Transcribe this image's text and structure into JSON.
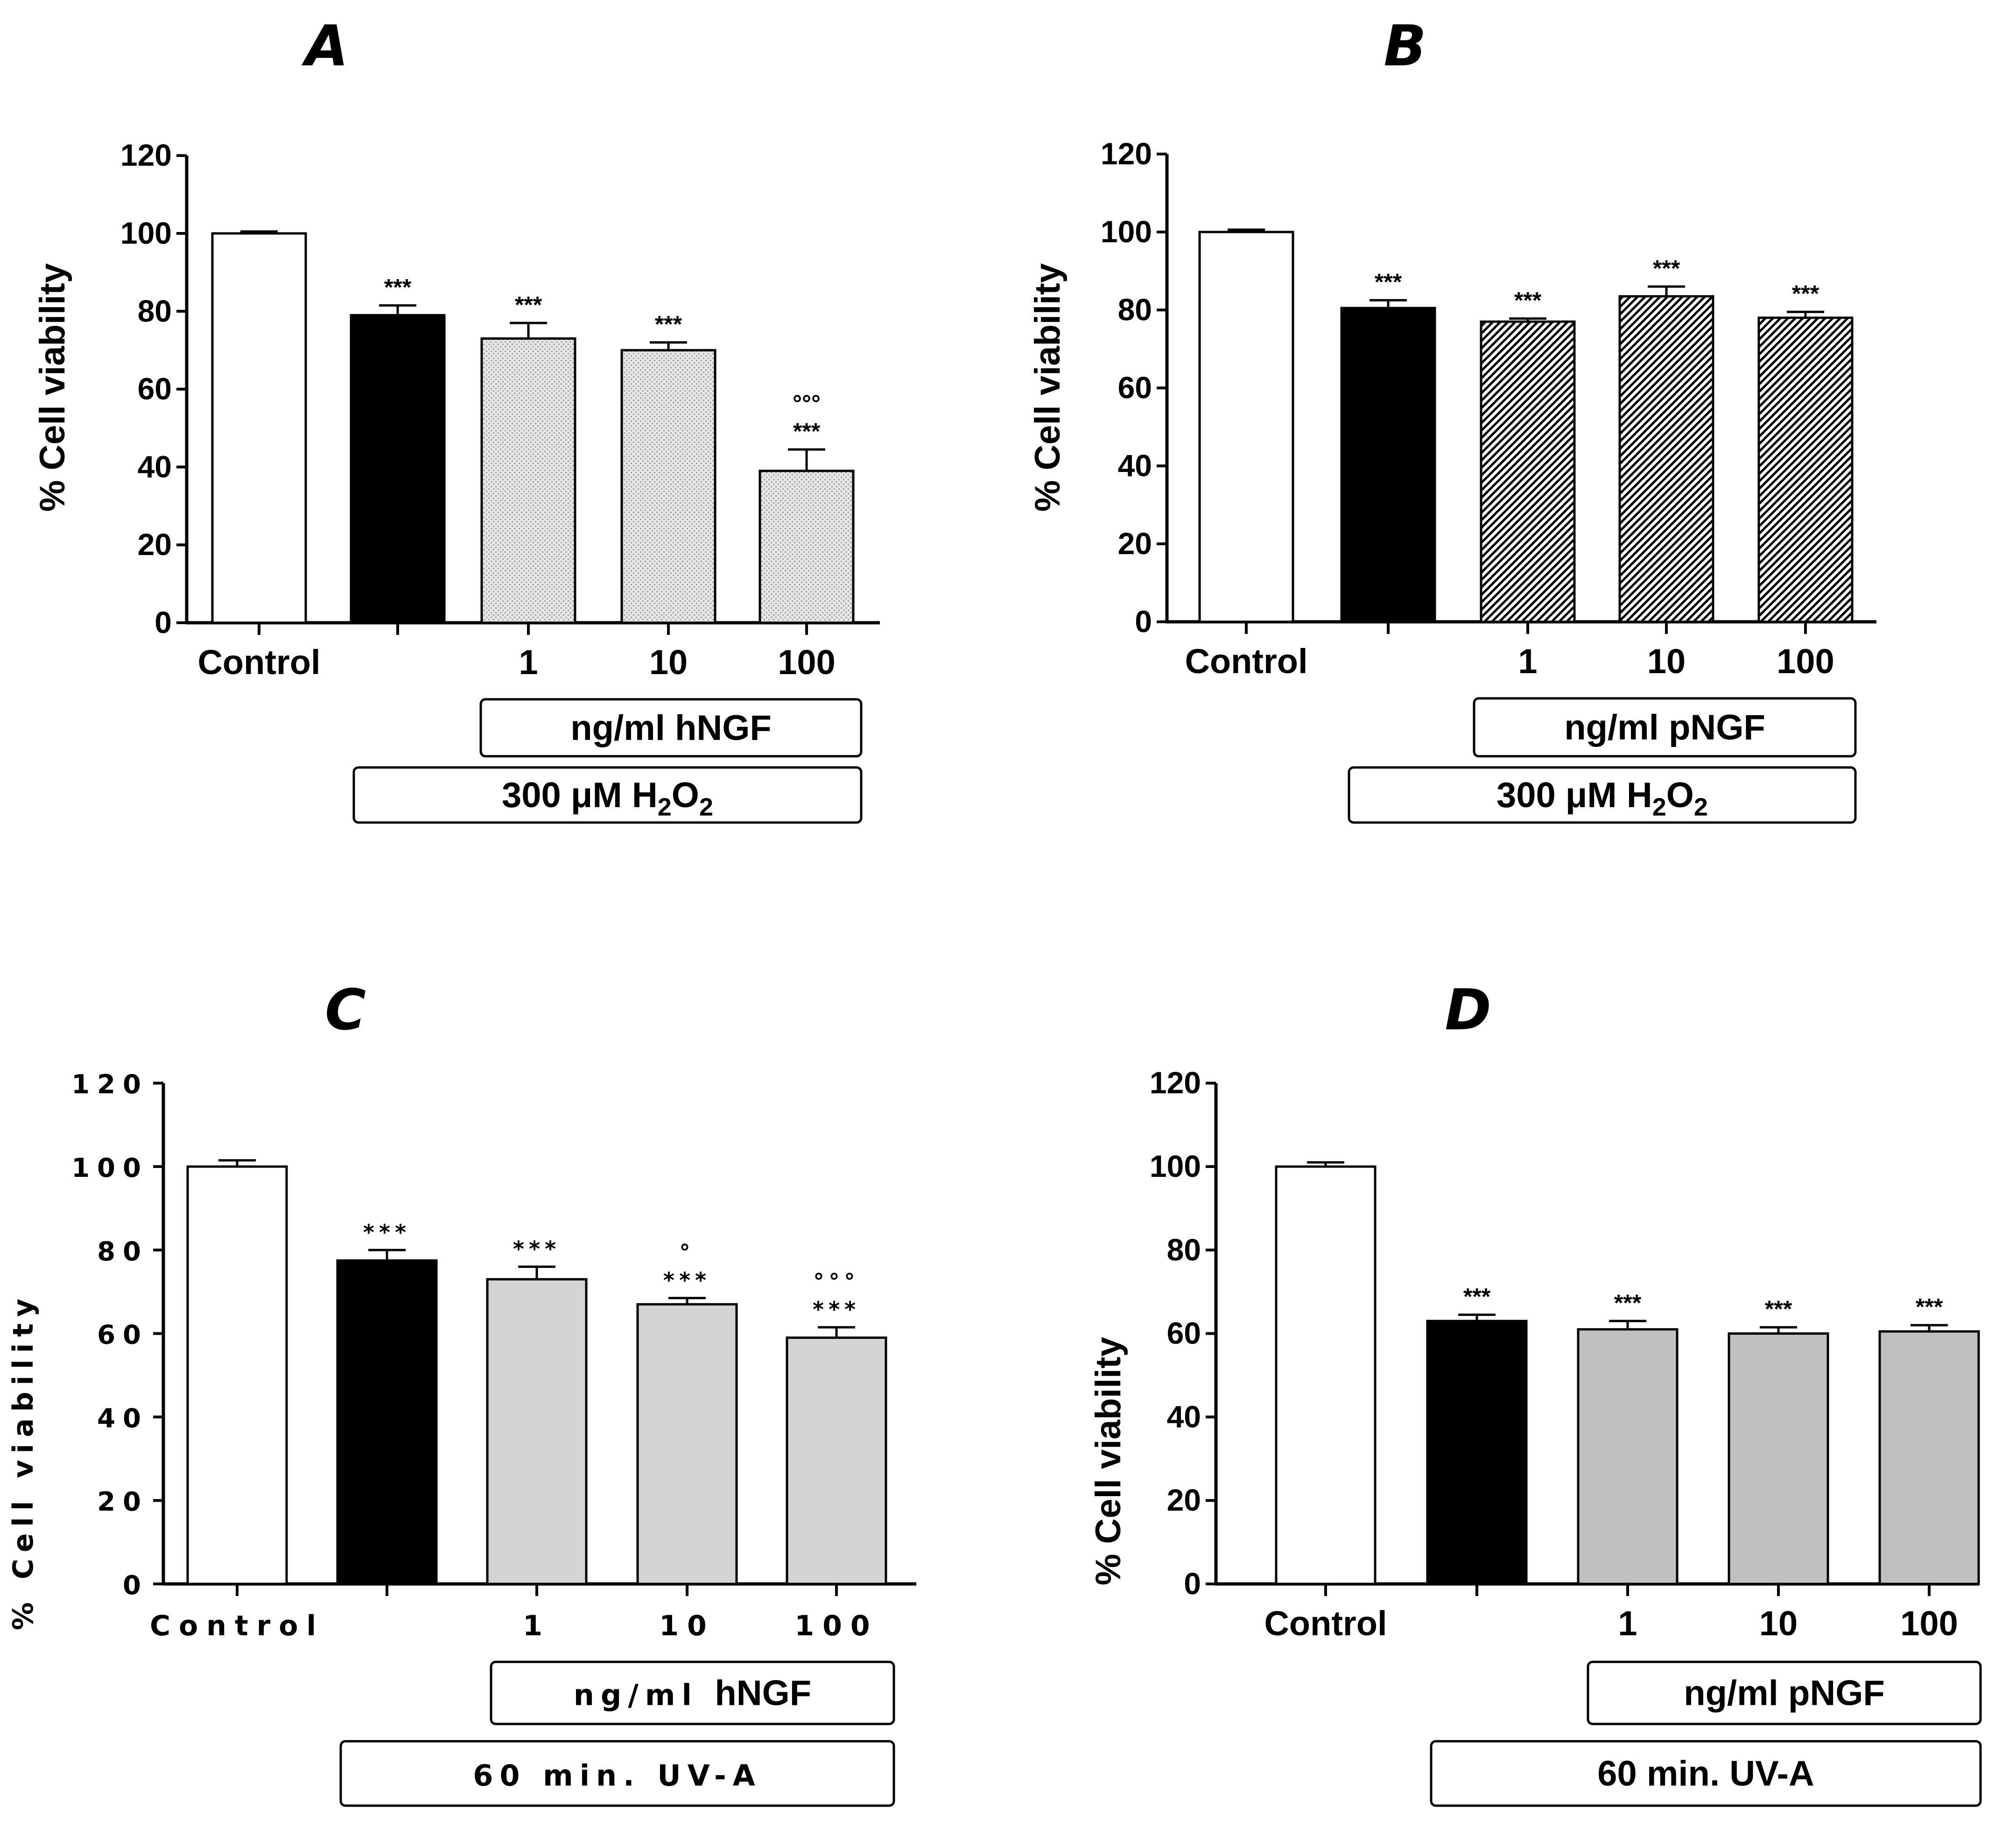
{
  "figure": {
    "panel_count": 4
  },
  "chart_data": [
    {
      "panel": "A",
      "type": "bar",
      "ylabel": "% Cell viability",
      "ylim": [
        0,
        120
      ],
      "yticks": [
        0,
        20,
        40,
        60,
        80,
        100,
        120
      ],
      "categories": [
        "Control",
        "",
        "1",
        "10",
        "100"
      ],
      "values": [
        100,
        79,
        73,
        70,
        39
      ],
      "errors": [
        0.5,
        2.5,
        4,
        2,
        5.5
      ],
      "fills": [
        "white",
        "black",
        "dots",
        "dots",
        "dots"
      ],
      "significance": [
        "",
        "***",
        "***",
        "***",
        "***"
      ],
      "second_significance": [
        "",
        "",
        "",
        "",
        "°°°"
      ],
      "box1": "ng/ml  hNGF",
      "box2": {
        "text": "300 μM   H",
        "sub1": "2",
        "mid": "O",
        "sub2": "2"
      }
    },
    {
      "panel": "B",
      "type": "bar",
      "ylabel": "% Cell viability",
      "ylim": [
        0,
        120
      ],
      "yticks": [
        0,
        20,
        40,
        60,
        80,
        100,
        120
      ],
      "categories": [
        "Control",
        "",
        "1",
        "10",
        "100"
      ],
      "values": [
        100,
        80.5,
        77,
        83.5,
        78
      ],
      "errors": [
        0.6,
        2,
        0.8,
        2.5,
        1.5
      ],
      "fills": [
        "white",
        "black",
        "hatch",
        "hatch",
        "hatch"
      ],
      "significance": [
        "",
        "***",
        "***",
        "***",
        "***"
      ],
      "second_significance": [
        "",
        "",
        "",
        "",
        ""
      ],
      "box1": "ng/ml pNGF",
      "box2": {
        "text": "300 μM   H",
        "sub1": "2",
        "mid": "O",
        "sub2": "2"
      }
    },
    {
      "panel": "C",
      "type": "bar",
      "ylabel": "% Cell viability",
      "ylim": [
        0,
        120
      ],
      "yticks": [
        0,
        20,
        40,
        60,
        80,
        100,
        120
      ],
      "categories": [
        "Control",
        "",
        "1",
        "10",
        "100"
      ],
      "values": [
        100,
        77.5,
        73,
        67,
        59
      ],
      "errors": [
        1.5,
        2.5,
        3,
        1.5,
        2.5
      ],
      "fills": [
        "white",
        "black",
        "gray",
        "gray",
        "gray"
      ],
      "significance": [
        "",
        "***",
        "***",
        "***",
        "***"
      ],
      "second_significance": [
        "",
        "",
        "",
        "°",
        "°°°"
      ],
      "box1_spaced": "ng/ml ",
      "box1": "hNGF",
      "box2": {
        "text": "60 min.  UV-A"
      }
    },
    {
      "panel": "D",
      "type": "bar",
      "ylabel": "% Cell viability",
      "ylim": [
        0,
        120
      ],
      "yticks": [
        0,
        20,
        40,
        60,
        80,
        100,
        120
      ],
      "categories": [
        "Control",
        "",
        "1",
        "10",
        "100"
      ],
      "values": [
        100,
        63,
        61,
        60,
        60.5
      ],
      "errors": [
        1,
        1.5,
        2,
        1.5,
        1.5
      ],
      "fills": [
        "white",
        "black",
        "gray2",
        "gray2",
        "gray2"
      ],
      "significance": [
        "",
        "***",
        "***",
        "***",
        "***"
      ],
      "second_significance": [
        "",
        "",
        "",
        "",
        ""
      ],
      "box1": "ng/ml pNGF",
      "box2": {
        "text": "60 min.   UV-A"
      }
    }
  ]
}
